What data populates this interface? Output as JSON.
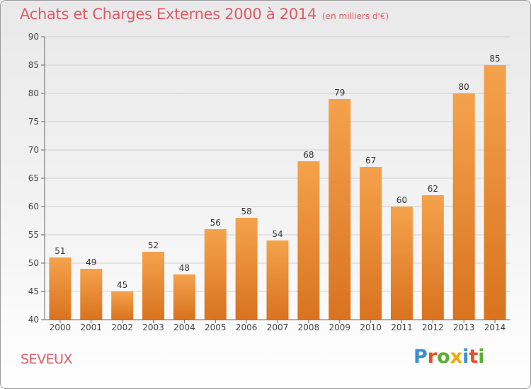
{
  "header": {
    "title": "Achats et Charges Externes 2000 à 2014",
    "subtitle": "(en milliers d'€)"
  },
  "footer": {
    "place": "SEVEUX",
    "logo_letters": [
      "P",
      "r",
      "o",
      "x",
      "i",
      "t",
      "i"
    ]
  },
  "colors": {
    "title": "#e05a66",
    "bar_top": "#f5a24c",
    "bar_bottom": "#d9731f"
  },
  "chart_data": {
    "type": "bar",
    "title": "Achats et Charges Externes 2000 à 2014",
    "subtitle": "(en milliers d'€)",
    "xlabel": "",
    "ylabel": "",
    "categories": [
      "2000",
      "2001",
      "2002",
      "2003",
      "2004",
      "2005",
      "2006",
      "2007",
      "2008",
      "2009",
      "2010",
      "2011",
      "2012",
      "2013",
      "2014"
    ],
    "values": [
      51,
      49,
      45,
      52,
      48,
      56,
      58,
      54,
      68,
      79,
      67,
      60,
      62,
      80,
      85
    ],
    "ylim": [
      40,
      90
    ],
    "yticks": [
      40,
      45,
      50,
      55,
      60,
      65,
      70,
      75,
      80,
      85,
      90
    ],
    "grid": true,
    "legend": "none"
  }
}
